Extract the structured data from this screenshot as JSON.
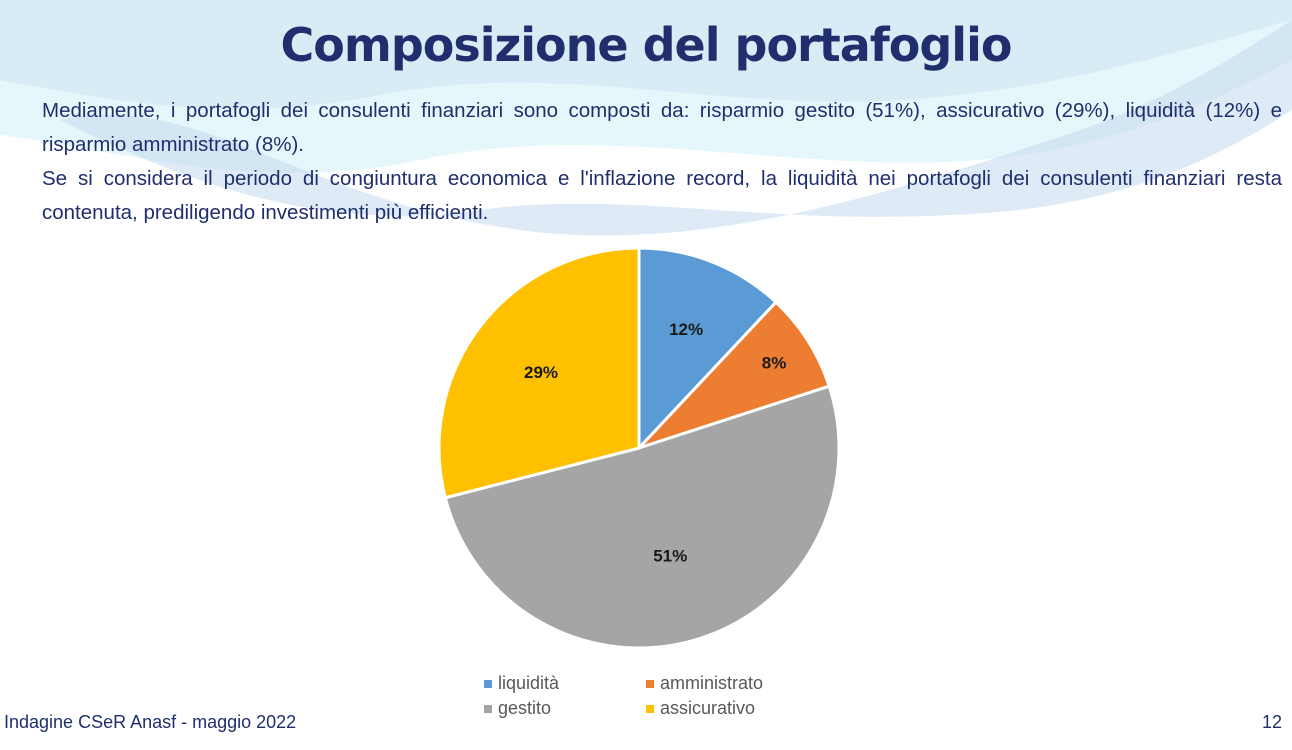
{
  "slide": {
    "title": "Composizione del portafoglio",
    "paragraph1": "Mediamente, i portafogli dei consulenti finanziari sono composti da: risparmio gestito (51%), assicurativo (29%), liquidità (12%) e risparmio amministrato (8%).",
    "paragraph2": "Se si considera il periodo di congiuntura economica e l'inflazione record, la liquidità nei portafogli dei consulenti finanziari resta contenuta, prediligendo investimenti più efficienti.",
    "footer_left": "Indagine CSeR Anasf - maggio 2022",
    "page_number": "12"
  },
  "colors": {
    "title": "#1f2f6e",
    "wave_light": "#e3f6fb",
    "wave_mid": "#cfe3f2",
    "wave_deep": "#b9d2ec"
  },
  "chart_data": {
    "type": "pie",
    "title": "",
    "slices": [
      {
        "name": "liquidità",
        "value": 12,
        "label": "12%",
        "color": "#5b9bd5"
      },
      {
        "name": "amministrato",
        "value": 8,
        "label": "8%",
        "color": "#ed7d31"
      },
      {
        "name": "gestito",
        "value": 51,
        "label": "51%",
        "color": "#a5a5a5"
      },
      {
        "name": "assicurativo",
        "value": 29,
        "label": "29%",
        "color": "#ffc000"
      }
    ],
    "legend_position": "bottom",
    "start_angle": "12 o'clock",
    "direction": "clockwise"
  }
}
